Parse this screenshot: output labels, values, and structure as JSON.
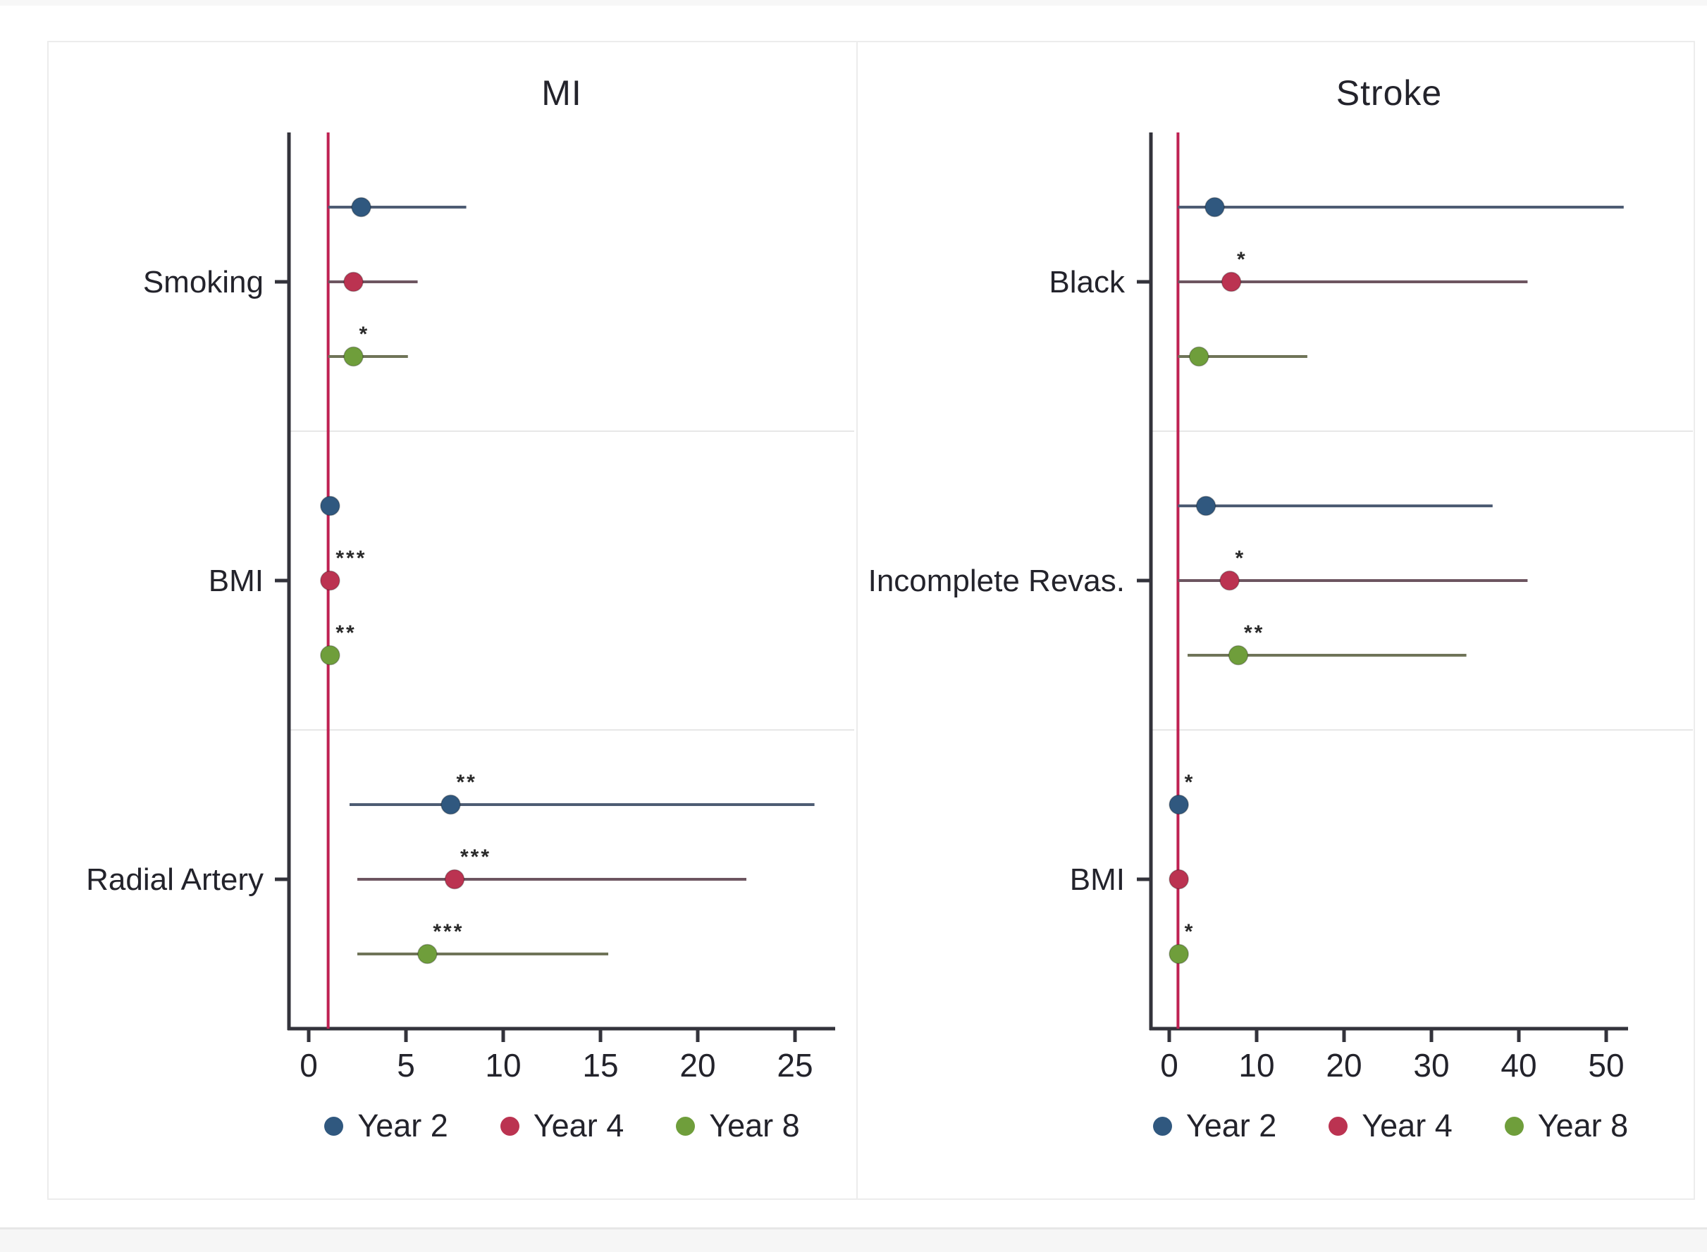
{
  "figure": {
    "background": "#ffffff",
    "frame_color": "#ececec",
    "divider_color": "#ececec",
    "axis_color": "#33333b",
    "text_color": "#23232b",
    "group_divider_color": "#e7e7e7",
    "ref_line_color": "#bf2152"
  },
  "legend": {
    "items": [
      {
        "label": "Year 2",
        "color": "#30587f",
        "line_color": "#4d5c73"
      },
      {
        "label": "Year 4",
        "color": "#bb3351",
        "line_color": "#6d5560"
      },
      {
        "label": "Year 8",
        "color": "#6f9e3b",
        "line_color": "#6f7458"
      }
    ]
  },
  "chart_data": [
    {
      "type": "scatter",
      "subtype": "forest-dot-ci",
      "title": "MI",
      "xlabel": "",
      "ylabel": "",
      "x_ticks": [
        0,
        5,
        10,
        15,
        20,
        25
      ],
      "xlim": [
        -1,
        27
      ],
      "ref_line_x": 1,
      "grid": false,
      "legend_position": "bottom",
      "legend": [
        "Year 2",
        "Year 4",
        "Year 8"
      ],
      "groups": [
        {
          "label": "Smoking",
          "rows": [
            {
              "series": "Year 2",
              "value": 2.7,
              "lo": 1.0,
              "hi": 8.1,
              "sig": ""
            },
            {
              "series": "Year 4",
              "value": 2.3,
              "lo": 1.0,
              "hi": 5.6,
              "sig": ""
            },
            {
              "series": "Year 8",
              "value": 2.3,
              "lo": 1.0,
              "hi": 5.1,
              "sig": "*"
            }
          ]
        },
        {
          "label": "BMI",
          "rows": [
            {
              "series": "Year 2",
              "value": 1.1,
              "lo": 0.95,
              "hi": 1.3,
              "sig": ""
            },
            {
              "series": "Year 4",
              "value": 1.1,
              "lo": 0.95,
              "hi": 1.3,
              "sig": "***"
            },
            {
              "series": "Year 8",
              "value": 1.1,
              "lo": 0.95,
              "hi": 1.3,
              "sig": "**"
            }
          ]
        },
        {
          "label": "Radial Artery",
          "rows": [
            {
              "series": "Year 2",
              "value": 7.3,
              "lo": 2.1,
              "hi": 26.0,
              "sig": "**"
            },
            {
              "series": "Year 4",
              "value": 7.5,
              "lo": 2.5,
              "hi": 22.5,
              "sig": "***"
            },
            {
              "series": "Year 8",
              "value": 6.1,
              "lo": 2.5,
              "hi": 15.4,
              "sig": "***"
            }
          ]
        }
      ]
    },
    {
      "type": "scatter",
      "subtype": "forest-dot-ci",
      "title": "Stroke",
      "xlabel": "",
      "ylabel": "",
      "x_ticks": [
        0,
        10,
        20,
        30,
        40,
        50
      ],
      "xlim": [
        -2,
        53
      ],
      "ref_line_x": 1,
      "grid": false,
      "legend_position": "bottom",
      "legend": [
        "Year 2",
        "Year 4",
        "Year 8"
      ],
      "groups": [
        {
          "label": "Black",
          "rows": [
            {
              "series": "Year 2",
              "value": 5.2,
              "lo": 1.0,
              "hi": 52.0,
              "sig": ""
            },
            {
              "series": "Year 4",
              "value": 7.1,
              "lo": 1.0,
              "hi": 41.0,
              "sig": "*"
            },
            {
              "series": "Year 8",
              "value": 3.4,
              "lo": 1.0,
              "hi": 15.8,
              "sig": ""
            }
          ]
        },
        {
          "label": "Incomplete Revas.",
          "rows": [
            {
              "series": "Year 2",
              "value": 4.2,
              "lo": 1.0,
              "hi": 37.0,
              "sig": ""
            },
            {
              "series": "Year 4",
              "value": 6.9,
              "lo": 1.0,
              "hi": 41.0,
              "sig": "*"
            },
            {
              "series": "Year 8",
              "value": 7.9,
              "lo": 2.1,
              "hi": 34.0,
              "sig": "**"
            }
          ]
        },
        {
          "label": "BMI",
          "rows": [
            {
              "series": "Year 2",
              "value": 1.1,
              "lo": 0.9,
              "hi": 1.4,
              "sig": "*"
            },
            {
              "series": "Year 4",
              "value": 1.1,
              "lo": 0.9,
              "hi": 1.4,
              "sig": ""
            },
            {
              "series": "Year 8",
              "value": 1.1,
              "lo": 0.9,
              "hi": 1.4,
              "sig": "*"
            }
          ]
        }
      ]
    }
  ]
}
